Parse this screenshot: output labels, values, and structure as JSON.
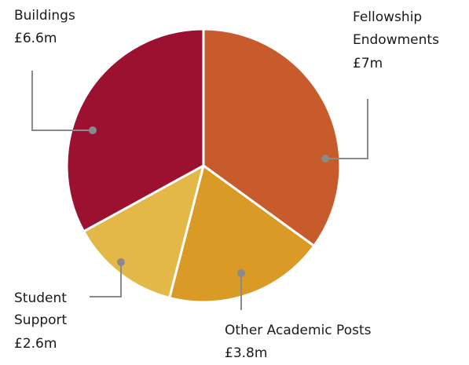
{
  "chart_data": {
    "type": "pie",
    "title": "",
    "unit": "£m",
    "slices": [
      {
        "label_lines": [
          "Fellowship",
          "Endowments",
          "£7m"
        ],
        "name": "Fellowship Endowments",
        "value": 7.0,
        "color": "#C75B2C"
      },
      {
        "label_lines": [
          "Other Academic Posts",
          "£3.8m"
        ],
        "name": "Other Academic Posts",
        "value": 3.8,
        "color": "#D99A26"
      },
      {
        "label_lines": [
          "Student",
          "Support",
          "£2.6m"
        ],
        "name": "Student Support",
        "value": 2.6,
        "color": "#E4B846"
      },
      {
        "label_lines": [
          "Buildings",
          "£6.6m"
        ],
        "name": "Buildings",
        "value": 6.6,
        "color": "#9C1030"
      }
    ],
    "start_angle_deg": 0,
    "direction": "clockwise",
    "legend": "none"
  }
}
